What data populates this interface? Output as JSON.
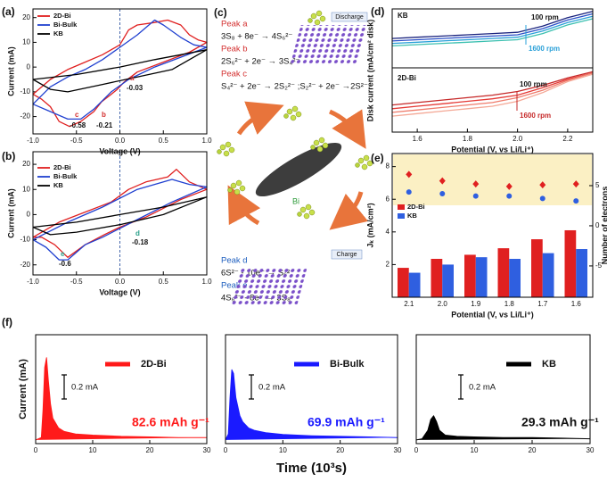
{
  "chart_data": [
    {
      "type": "line",
      "panel_label": "(a)",
      "x_label": "Voltage (V)",
      "y_label": "Current (mA)",
      "xlim": [
        -1,
        1
      ],
      "xticks": [
        {
          "value": -1,
          "label": "-1.0"
        },
        -0.5,
        {
          "value": 0,
          "label": "0.0"
        },
        0.5,
        {
          "value": 1,
          "label": "1.0"
        }
      ],
      "ylim": [
        -27,
        23.5
      ],
      "yticks": [
        -20,
        -10,
        0,
        10,
        20
      ],
      "series": [
        {
          "name": "2D-Bi",
          "color": "#e02020",
          "x": [
            -1,
            -0.8,
            -0.6,
            -0.4,
            -0.2,
            0,
            0.1,
            0.2,
            0.4,
            0.55,
            0.7,
            0.8,
            0.9,
            1,
            0.8,
            0.5,
            0.2,
            0.05,
            -0.03,
            -0.1,
            -0.21,
            -0.3,
            -0.45,
            -0.58,
            -0.7,
            -0.8,
            -0.9,
            -1
          ],
          "values": [
            -11,
            -5,
            -1,
            2,
            5,
            9,
            15,
            17,
            18,
            19,
            17,
            13,
            11,
            10,
            6,
            2,
            -2,
            -6,
            -9,
            -11,
            -14,
            -18,
            -22,
            -24,
            -22,
            -16,
            -13,
            -11
          ]
        },
        {
          "name": "Bi-Bulk",
          "color": "#2040d0",
          "x": [
            -1,
            -0.8,
            -0.6,
            -0.4,
            -0.2,
            0,
            0.2,
            0.4,
            0.5,
            0.7,
            0.85,
            1,
            0.7,
            0.4,
            0.1,
            -0.1,
            -0.3,
            -0.45,
            -0.6,
            -0.8,
            -1
          ],
          "values": [
            -15,
            -8,
            -4,
            -1,
            3,
            8,
            13,
            19,
            17,
            12,
            9,
            8,
            4,
            0,
            -5,
            -10,
            -17,
            -21,
            -21,
            -18,
            -15
          ]
        },
        {
          "name": "KB",
          "color": "#000000",
          "x": [
            -1,
            -0.5,
            0,
            0.4,
            0.7,
            1,
            0.6,
            0.2,
            -0.2,
            -0.6,
            -0.8,
            -1
          ],
          "values": [
            -5,
            -3,
            0,
            3,
            5,
            7,
            -1,
            -4,
            -7,
            -10,
            -9,
            -5
          ]
        }
      ],
      "annotations": [
        "a",
        "-0.03",
        "b",
        "-0.21",
        "c",
        "-0.58"
      ]
    },
    {
      "type": "line",
      "panel_label": "(b)",
      "x_label": "Voltage (V)",
      "y_label": "Current (mA)",
      "xlim": [
        -1,
        1
      ],
      "xticks": [
        {
          "value": -1,
          "label": "-1.0"
        },
        -0.5,
        {
          "value": 0,
          "label": "0.0"
        },
        0.5,
        {
          "value": 1,
          "label": "1.0"
        }
      ],
      "ylim": [
        -24,
        25
      ],
      "yticks": [
        -20,
        -10,
        0,
        10,
        20
      ],
      "series": [
        {
          "name": "2D-Bi",
          "color": "#e02020",
          "x": [
            -1,
            -0.7,
            -0.4,
            -0.1,
            0.1,
            0.3,
            0.55,
            0.65,
            0.8,
            1,
            0.7,
            0.3,
            0,
            -0.18,
            -0.4,
            -0.6,
            -0.75,
            -0.9,
            -1
          ],
          "values": [
            -9,
            -3,
            1,
            5,
            10,
            13,
            15,
            18,
            13,
            10,
            6,
            -1,
            -5,
            -8,
            -12,
            -17,
            -12,
            -9,
            -9
          ]
        },
        {
          "name": "Bi-Bulk",
          "color": "#2040d0",
          "x": [
            -1,
            -0.6,
            -0.2,
            0.2,
            0.4,
            0.6,
            0.8,
            1,
            0.6,
            0.2,
            -0.2,
            -0.4,
            -0.6,
            -0.7,
            -0.85,
            -1
          ],
          "values": [
            -10,
            -3,
            3,
            10,
            12,
            14,
            12,
            11,
            5,
            -2,
            -9,
            -12,
            -18,
            -18,
            -13,
            -10
          ]
        },
        {
          "name": "KB",
          "color": "#000000",
          "x": [
            -1,
            -0.5,
            0,
            0.5,
            1,
            0.5,
            0,
            -0.5,
            -0.8,
            -1
          ],
          "values": [
            -5,
            -3,
            0,
            3,
            7,
            0,
            -4,
            -7,
            -8,
            -5
          ]
        }
      ],
      "annotations": [
        "d",
        "-0.18",
        "e",
        "-0.6"
      ]
    },
    {
      "type": "line",
      "panel_label": "(d)",
      "x_label": "Potential  (V, vs Li/Li⁺)",
      "y_label": "Disk current (mA/cm² disk)",
      "xlim": [
        1.5,
        2.3
      ],
      "xticks": [
        1.6,
        1.8,
        {
          "value": 2,
          "label": "2.0"
        },
        2.2
      ],
      "ylim": [
        0,
        10
      ],
      "series": [
        {
          "color": "#1a237e",
          "x": [
            1.5,
            1.6,
            1.7,
            1.8,
            1.9,
            2.0,
            2.1,
            2.2,
            2.3
          ],
          "values": [
            7.6,
            7.7,
            7.8,
            7.9,
            8.0,
            8.1,
            8.6,
            9.3,
            9.8
          ]
        },
        {
          "color": "#2b50c8",
          "x": [
            1.5,
            1.6,
            1.7,
            1.8,
            1.9,
            2.0,
            2.1,
            2.2,
            2.3
          ],
          "values": [
            7.4,
            7.5,
            7.6,
            7.7,
            7.8,
            7.9,
            8.4,
            9.1,
            9.6
          ]
        },
        {
          "color": "#2aa0d8",
          "x": [
            1.5,
            1.6,
            1.7,
            1.8,
            1.9,
            2.0,
            2.1,
            2.2,
            2.3
          ],
          "values": [
            7.2,
            7.3,
            7.4,
            7.5,
            7.6,
            7.7,
            8.2,
            8.9,
            9.4
          ]
        },
        {
          "color": "#3cc0b0",
          "x": [
            1.5,
            1.6,
            1.7,
            1.8,
            1.9,
            2.0,
            2.1,
            2.2,
            2.3
          ],
          "values": [
            7.0,
            7.1,
            7.2,
            7.3,
            7.4,
            7.5,
            8.0,
            8.7,
            9.2
          ]
        },
        {
          "color": "#c62828",
          "x": [
            1.5,
            1.6,
            1.7,
            1.8,
            1.9,
            2.0,
            2.1,
            2.2,
            2.3
          ],
          "values": [
            2.2,
            2.4,
            2.6,
            2.8,
            3.0,
            3.3,
            3.8,
            4.4,
            4.9
          ]
        },
        {
          "color": "#e53935",
          "x": [
            1.5,
            1.6,
            1.7,
            1.8,
            1.9,
            2.0,
            2.1,
            2.2,
            2.3
          ],
          "values": [
            1.9,
            2.1,
            2.3,
            2.5,
            2.7,
            3.0,
            3.6,
            4.3,
            4.8
          ]
        },
        {
          "color": "#ef7b6b",
          "x": [
            1.5,
            1.6,
            1.7,
            1.8,
            1.9,
            2.0,
            2.1,
            2.2,
            2.3
          ],
          "values": [
            1.6,
            1.8,
            2.0,
            2.2,
            2.4,
            2.8,
            3.4,
            4.2,
            4.8
          ]
        },
        {
          "color": "#f4a896",
          "x": [
            1.5,
            1.6,
            1.7,
            1.8,
            1.9,
            2.0,
            2.1,
            2.2,
            2.3
          ],
          "values": [
            1.3,
            1.5,
            1.7,
            1.9,
            2.1,
            2.5,
            3.2,
            4.1,
            4.7
          ]
        }
      ],
      "annotations": [
        "KB",
        "100 rpm",
        "1600 rpm",
        "2D-Bi",
        "100 rpm",
        "1600 rpm"
      ]
    },
    {
      "type": "bar",
      "panel_label": "(e)",
      "x_label": "Potential  (V, vs Li/Li⁺)",
      "y_label": "Jₖ (mA/cm²)",
      "y2_label": "Number of electrons",
      "categories": [
        "2.1",
        "2.0",
        "1.9",
        "1.8",
        "1.7",
        "1.6"
      ],
      "ylim": [
        0,
        8.8
      ],
      "yticks": [
        2,
        4,
        6,
        8
      ],
      "y2lim": [
        -8.9,
        9
      ],
      "y2ticks": [
        -5,
        0,
        5
      ],
      "series": [
        {
          "name": "2D-Bi",
          "color": "#e02020",
          "values": [
            1.8,
            2.35,
            2.6,
            3.0,
            3.55,
            4.1
          ]
        },
        {
          "name": "KB",
          "color": "#2f5fe0",
          "values": [
            1.5,
            2.0,
            2.45,
            2.35,
            2.7,
            2.95
          ]
        },
        {
          "color": "#e02020",
          "axis": "y2",
          "marker": "diamond",
          "values": [
            6.4,
            5.6,
            5.2,
            4.9,
            5.1,
            5.2
          ]
        },
        {
          "color": "#2f5fe0",
          "axis": "y2",
          "marker": "circle",
          "values": [
            4.2,
            4.0,
            3.7,
            3.7,
            3.4,
            3.1
          ]
        }
      ]
    },
    {
      "type": "area",
      "panel_label": "(f)",
      "y_label": "Current (mA)",
      "xlim": [
        0,
        30
      ],
      "xticks": [
        0,
        10,
        20,
        30
      ],
      "ylim": [
        -0.03,
        0.87
      ],
      "series": [
        {
          "name": "2D-Bi",
          "color": "#ff1a1a",
          "x": [
            0,
            1,
            1.3,
            1.6,
            1.9,
            2.2,
            2.6,
            3,
            4,
            5,
            7,
            10,
            15,
            20,
            25,
            30
          ],
          "values": [
            0,
            0.02,
            0.25,
            0.6,
            0.68,
            0.5,
            0.3,
            0.18,
            0.1,
            0.07,
            0.05,
            0.04,
            0.03,
            0.025,
            0.02,
            0.02
          ]
        }
      ],
      "annotations": [
        "0.2 mA",
        "82.6 mAh g⁻¹"
      ]
    },
    {
      "type": "area",
      "x_label": "Time (10³s)",
      "xlim": [
        0,
        30
      ],
      "xticks": [
        0,
        10,
        20,
        30
      ],
      "ylim": [
        -0.03,
        0.87
      ],
      "series": [
        {
          "name": "Bi-Bulk",
          "color": "#1a1aff",
          "x": [
            0,
            0.5,
            0.8,
            1.1,
            1.4,
            1.8,
            2.5,
            3,
            4,
            5,
            7,
            10,
            15,
            20,
            25,
            30
          ],
          "values": [
            0,
            0.05,
            0.35,
            0.58,
            0.55,
            0.35,
            0.2,
            0.15,
            0.1,
            0.08,
            0.06,
            0.045,
            0.035,
            0.03,
            0.025,
            0.02
          ]
        }
      ],
      "annotations": [
        "0.2 mA",
        "69.9 mAh g⁻¹"
      ]
    },
    {
      "type": "area",
      "xlim": [
        0,
        30
      ],
      "xticks": [
        0,
        10,
        20,
        30
      ],
      "ylim": [
        -0.03,
        0.87
      ],
      "series": [
        {
          "name": "KB",
          "color": "#000000",
          "x": [
            0,
            1,
            2,
            2.5,
            3,
            3.5,
            4,
            5,
            7,
            10,
            15,
            20,
            25,
            30
          ],
          "values": [
            0,
            0.01,
            0.08,
            0.17,
            0.2,
            0.15,
            0.08,
            0.04,
            0.03,
            0.025,
            0.02,
            0.02,
            0.015,
            0.01
          ]
        }
      ],
      "annotations": [
        "0.2 mA",
        "29.3 mAh g⁻¹"
      ]
    }
  ],
  "panel_c": {
    "label": "(c)",
    "peaks": [
      {
        "name": "Peak a",
        "reaction": "3S₈ + 8e⁻ → 4S₆²⁻"
      },
      {
        "name": "Peak b",
        "reaction": "2S₆²⁻ + 2e⁻ → 3S₄²⁻"
      },
      {
        "name": "Peak c",
        "reaction": "S₄²⁻ + 2e⁻ → 2S₂²⁻ ;S₂²⁻ + 2e⁻ →2S²⁻"
      },
      {
        "name": "Peak d",
        "reaction": "6S²⁻ - 10e⁻ → S₆²⁻"
      },
      {
        "name": "Peak e",
        "reaction": "4S₆²⁻ - 8e⁻ → 3S₈"
      }
    ],
    "discharge": "Discharge",
    "charge": "Charge",
    "center": "Bi"
  }
}
